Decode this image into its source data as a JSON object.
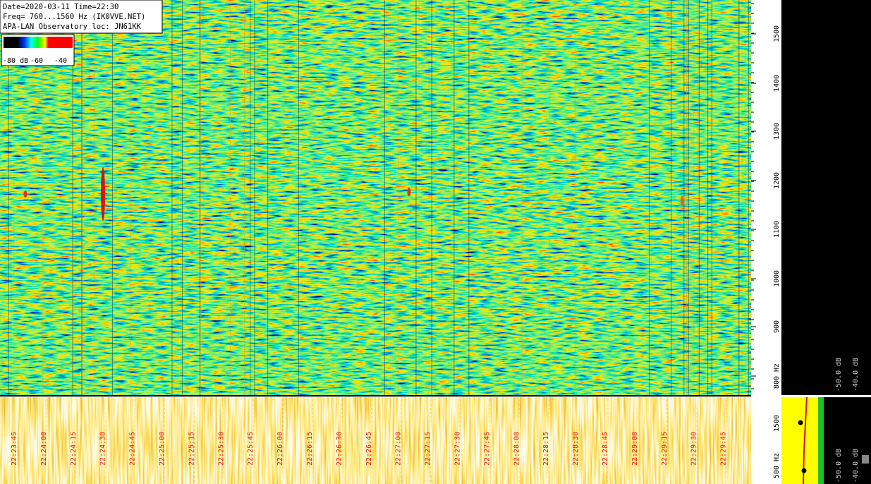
{
  "header": {
    "lines": [
      "Date=2020-03-11 Time=22:30",
      "Freq= 760...1560 Hz (IK0VVE.NET)",
      "APA-LAN Observatory loc: JN61KK"
    ]
  },
  "color_scale": {
    "labels": [
      "-80 dB",
      "-60",
      "-40"
    ]
  },
  "frequency_axis": {
    "labels": [
      "1500",
      "1400",
      "1300",
      "1200",
      "1100",
      "1000",
      "900",
      "800 Hz"
    ]
  },
  "spectrum_panel": {
    "labels": [
      "-50.0 dB",
      "-40.0 dB"
    ]
  },
  "lower_axis": {
    "labels": [
      "1500",
      "500 Hz"
    ]
  },
  "lower_spectrum_panel": {
    "labels": [
      "-50.0 dB",
      "-40.0 dB"
    ]
  },
  "time_axis": {
    "labels": [
      "22:23:45",
      "22:24:00",
      "22:24:15",
      "22:24:30",
      "22:24:45",
      "22:25:00",
      "22:25:15",
      "22:25:30",
      "22:25:45",
      "22:26:00",
      "22:26:15",
      "22:26:30",
      "22:26:45",
      "22:27:00",
      "22:27:15",
      "22:27:30",
      "22:27:45",
      "22:28:00",
      "22:28:15",
      "22:28:30",
      "22:28:45",
      "22:29:00",
      "22:29:15",
      "22:29:30",
      "22:29:45"
    ]
  }
}
